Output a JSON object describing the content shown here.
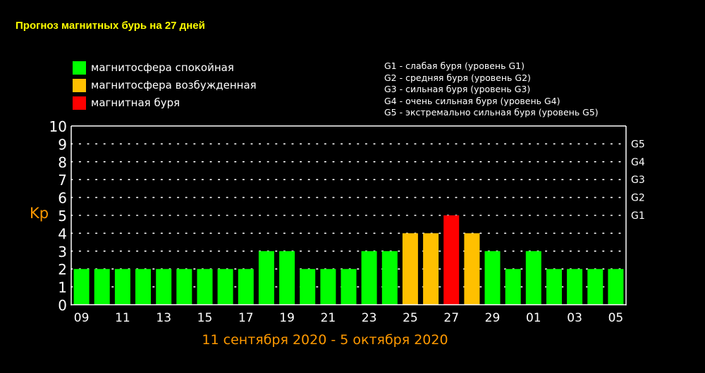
{
  "title": "Прогноз магнитных бурь на 27 дней",
  "colors": {
    "background": "#000000",
    "calm": "#00ff00",
    "excited": "#ffc000",
    "storm": "#ff0000",
    "title": "#ffff00",
    "accent": "#ff9900",
    "text": "#ffffff"
  },
  "legend": [
    {
      "label": "магнитосфера спокойная",
      "color": "#00ff00"
    },
    {
      "label": "магнитосфера возбужденная",
      "color": "#ffc000"
    },
    {
      "label": "магнитная буря",
      "color": "#ff0000"
    }
  ],
  "storm_levels": [
    "G1 - слабая буря (уровень G1)",
    "G2 - средняя буря (уровень G2)",
    "G3 - сильная буря (уровень G3)",
    "G4 - очень сильная буря (уровень G4)",
    "G5 - экстремально сильная буря (уровень G5)"
  ],
  "chart_data": {
    "type": "bar",
    "title": "Прогноз магнитных бурь на 27 дней",
    "ylabel": "Kp",
    "xlabel": "11 сентября 2020 - 5 октября 2020",
    "ylim": [
      0,
      10
    ],
    "yticks": [
      "0",
      "1",
      "2",
      "3",
      "4",
      "5",
      "6",
      "7",
      "8",
      "9",
      "10"
    ],
    "xticks": [
      "09",
      "11",
      "13",
      "15",
      "17",
      "19",
      "21",
      "23",
      "25",
      "27",
      "29",
      "01",
      "03",
      "05"
    ],
    "right_axis": [
      {
        "label": "G1",
        "value": 5
      },
      {
        "label": "G2",
        "value": 6
      },
      {
        "label": "G3",
        "value": 7
      },
      {
        "label": "G4",
        "value": 8
      },
      {
        "label": "G5",
        "value": 9
      }
    ],
    "grid": true,
    "values": [
      2,
      2,
      2,
      2,
      2,
      2,
      2,
      2,
      2,
      3,
      3,
      2,
      2,
      2,
      3,
      3,
      4,
      4,
      5,
      4,
      3,
      2,
      3,
      2,
      2,
      2,
      2
    ],
    "levels": [
      "calm",
      "calm",
      "calm",
      "calm",
      "calm",
      "calm",
      "calm",
      "calm",
      "calm",
      "calm",
      "calm",
      "calm",
      "calm",
      "calm",
      "calm",
      "calm",
      "excited",
      "excited",
      "storm",
      "excited",
      "calm",
      "calm",
      "calm",
      "calm",
      "calm",
      "calm",
      "calm"
    ]
  }
}
